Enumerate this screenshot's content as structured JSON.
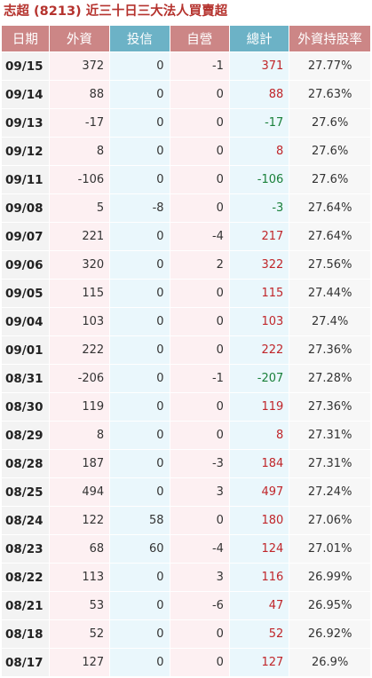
{
  "title": "志超 (8213) 近三十日三大法人買賣超",
  "headers": [
    "日期",
    "外資",
    "投信",
    "自營",
    "總計",
    "外資持股率"
  ],
  "rows": [
    {
      "date": "09/15",
      "foreign": "372",
      "trust": "0",
      "dealer": "-1",
      "total": "371",
      "ratio": "27.77%"
    },
    {
      "date": "09/14",
      "foreign": "88",
      "trust": "0",
      "dealer": "0",
      "total": "88",
      "ratio": "27.63%"
    },
    {
      "date": "09/13",
      "foreign": "-17",
      "trust": "0",
      "dealer": "0",
      "total": "-17",
      "ratio": "27.6%"
    },
    {
      "date": "09/12",
      "foreign": "8",
      "trust": "0",
      "dealer": "0",
      "total": "8",
      "ratio": "27.6%"
    },
    {
      "date": "09/11",
      "foreign": "-106",
      "trust": "0",
      "dealer": "0",
      "total": "-106",
      "ratio": "27.6%"
    },
    {
      "date": "09/08",
      "foreign": "5",
      "trust": "-8",
      "dealer": "0",
      "total": "-3",
      "ratio": "27.64%"
    },
    {
      "date": "09/07",
      "foreign": "221",
      "trust": "0",
      "dealer": "-4",
      "total": "217",
      "ratio": "27.64%"
    },
    {
      "date": "09/06",
      "foreign": "320",
      "trust": "0",
      "dealer": "2",
      "total": "322",
      "ratio": "27.56%"
    },
    {
      "date": "09/05",
      "foreign": "115",
      "trust": "0",
      "dealer": "0",
      "total": "115",
      "ratio": "27.44%"
    },
    {
      "date": "09/04",
      "foreign": "103",
      "trust": "0",
      "dealer": "0",
      "total": "103",
      "ratio": "27.4%"
    },
    {
      "date": "09/01",
      "foreign": "222",
      "trust": "0",
      "dealer": "0",
      "total": "222",
      "ratio": "27.36%"
    },
    {
      "date": "08/31",
      "foreign": "-206",
      "trust": "0",
      "dealer": "-1",
      "total": "-207",
      "ratio": "27.28%"
    },
    {
      "date": "08/30",
      "foreign": "119",
      "trust": "0",
      "dealer": "0",
      "total": "119",
      "ratio": "27.36%"
    },
    {
      "date": "08/29",
      "foreign": "8",
      "trust": "0",
      "dealer": "0",
      "total": "8",
      "ratio": "27.31%"
    },
    {
      "date": "08/28",
      "foreign": "187",
      "trust": "0",
      "dealer": "-3",
      "total": "184",
      "ratio": "27.31%"
    },
    {
      "date": "08/25",
      "foreign": "494",
      "trust": "0",
      "dealer": "3",
      "total": "497",
      "ratio": "27.24%"
    },
    {
      "date": "08/24",
      "foreign": "122",
      "trust": "58",
      "dealer": "0",
      "total": "180",
      "ratio": "27.06%"
    },
    {
      "date": "08/23",
      "foreign": "68",
      "trust": "60",
      "dealer": "-4",
      "total": "124",
      "ratio": "27.01%"
    },
    {
      "date": "08/22",
      "foreign": "113",
      "trust": "0",
      "dealer": "3",
      "total": "116",
      "ratio": "26.99%"
    },
    {
      "date": "08/21",
      "foreign": "53",
      "trust": "0",
      "dealer": "-6",
      "total": "47",
      "ratio": "26.95%"
    },
    {
      "date": "08/18",
      "foreign": "52",
      "trust": "0",
      "dealer": "0",
      "total": "52",
      "ratio": "26.92%"
    },
    {
      "date": "08/17",
      "foreign": "127",
      "trust": "0",
      "dealer": "0",
      "total": "127",
      "ratio": "26.9%"
    }
  ],
  "colors": {
    "title": "#b5332e",
    "header_red": "#cc8686",
    "header_blue": "#6cb2c6",
    "positive": "#c0262a",
    "negative": "#19803a"
  }
}
